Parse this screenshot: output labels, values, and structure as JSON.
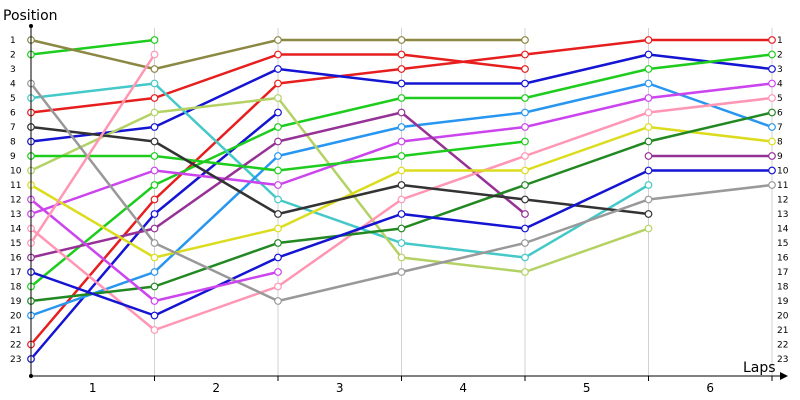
{
  "chart_data": {
    "type": "line",
    "ylabel": "Position",
    "xlabel": "Laps",
    "x_ticks": [
      "1",
      "2",
      "3",
      "4",
      "5",
      "6"
    ],
    "y_ticks_left": [
      "1",
      "2",
      "3",
      "4",
      "5",
      "6",
      "7",
      "8",
      "9",
      "10",
      "11",
      "12",
      "13",
      "14",
      "15",
      "16",
      "17",
      "18",
      "19",
      "20",
      "21",
      "22",
      "23"
    ],
    "y_ticks_right": [
      "1",
      "2",
      "3",
      "4",
      "5",
      "6",
      "7",
      "8",
      "9",
      "10",
      "11",
      "12",
      "13",
      "14",
      "15",
      "16",
      "17",
      "18",
      "19",
      "20",
      "21",
      "22",
      "23"
    ],
    "x_points": [
      0,
      1,
      2,
      3,
      4,
      5,
      6
    ],
    "ylim": [
      1,
      23
    ],
    "y_inverted": true,
    "grid": "vertical",
    "series": [
      {
        "color": "#e61e1e",
        "positions": [
          22,
          12,
          4,
          3,
          2,
          1,
          1
        ]
      },
      {
        "color": "#1ecc1e",
        "positions": [
          2,
          1,
          null,
          null,
          null,
          null,
          null
        ]
      },
      {
        "color": "#8c8844",
        "positions": [
          1,
          3,
          1,
          1,
          1,
          null,
          null
        ]
      },
      {
        "color": "#1414d2",
        "positions": [
          23,
          13,
          6,
          null,
          null,
          null,
          null
        ]
      },
      {
        "color": "#e61e1e",
        "positions": [
          6,
          5,
          2,
          2,
          3,
          null,
          null
        ]
      },
      {
        "color": "#1414d2",
        "positions": [
          8,
          7,
          3,
          4,
          4,
          2,
          3
        ]
      },
      {
        "color": "#1ecc1e",
        "positions": [
          18,
          11,
          7,
          5,
          5,
          3,
          2
        ]
      },
      {
        "color": "#44c8c8",
        "positions": [
          5,
          4,
          12,
          15,
          16,
          11,
          null
        ]
      },
      {
        "color": "#2896f0",
        "positions": [
          20,
          17,
          9,
          7,
          6,
          4,
          7
        ]
      },
      {
        "color": "#b4d264",
        "positions": [
          10,
          6,
          5,
          16,
          17,
          14,
          null
        ]
      },
      {
        "color": "#cc44ee",
        "positions": [
          13,
          10,
          11,
          8,
          7,
          5,
          4
        ]
      },
      {
        "color": "#963296",
        "positions": [
          16,
          14,
          8,
          6,
          13,
          null,
          null
        ]
      },
      {
        "color": "#ff96b4",
        "positions": [
          14,
          21,
          18,
          12,
          9,
          6,
          5
        ]
      },
      {
        "color": "#dcdc1e",
        "positions": [
          11,
          16,
          14,
          10,
          10,
          7,
          8
        ]
      },
      {
        "color": "#228822",
        "positions": [
          19,
          18,
          15,
          14,
          11,
          8,
          6
        ]
      },
      {
        "color": "#963296",
        "positions": [
          null,
          null,
          null,
          null,
          null,
          9,
          9
        ]
      },
      {
        "color": "#1ecc1e",
        "positions": [
          9,
          9,
          10,
          9,
          8,
          null,
          null
        ]
      },
      {
        "color": "#333333",
        "positions": [
          7,
          8,
          13,
          11,
          12,
          13,
          null
        ]
      },
      {
        "color": "#1414d2",
        "positions": [
          17,
          20,
          16,
          13,
          14,
          10,
          10
        ]
      },
      {
        "color": "#999999",
        "positions": [
          4,
          15,
          19,
          17,
          15,
          12,
          11
        ]
      },
      {
        "color": "#cc44ee",
        "positions": [
          12,
          19,
          17,
          null,
          null,
          null,
          null
        ]
      },
      {
        "color": "#ff96b4",
        "positions": [
          15,
          2,
          null,
          null,
          null,
          null,
          null
        ]
      }
    ]
  }
}
